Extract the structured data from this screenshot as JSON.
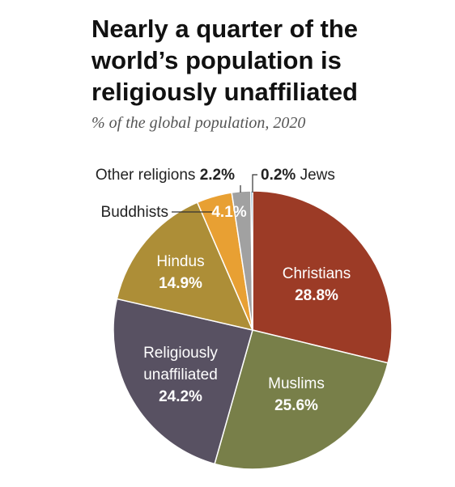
{
  "title": "Nearly a quarter of the world’s population is religiously unaffiliated",
  "subtitle": "% of the global population, 2020",
  "chart_data": {
    "type": "pie",
    "title": "Nearly a quarter of the world’s population is religiously unaffiliated",
    "subtitle": "% of the global population, 2020",
    "start": "12 o'clock",
    "direction": "clockwise",
    "slices": [
      {
        "name": "Christians",
        "value": 28.8,
        "value_label": "28.8%",
        "color": "#9c3b26"
      },
      {
        "name": "Muslims",
        "value": 25.6,
        "value_label": "25.6%",
        "color": "#787f49"
      },
      {
        "name": "Religiously unaffiliated",
        "value": 24.2,
        "value_label": "24.2%",
        "color": "#585162"
      },
      {
        "name": "Hindus",
        "value": 14.9,
        "value_label": "14.9%",
        "color": "#ad8e37"
      },
      {
        "name": "Buddhists",
        "value": 4.1,
        "value_label": "4.1%",
        "color": "#e8a033"
      },
      {
        "name": "Other religions",
        "value": 2.2,
        "value_label": "2.2%",
        "color": "#a1a1a1"
      },
      {
        "name": "Jews",
        "value": 0.2,
        "value_label": "0.2%",
        "color": "#2a6e9c"
      }
    ]
  }
}
